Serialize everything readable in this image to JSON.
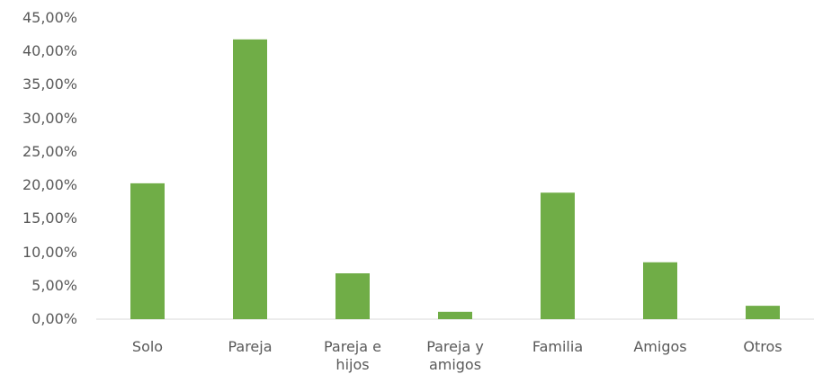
{
  "chart_data": {
    "type": "bar",
    "categories": [
      "Solo",
      "Pareja",
      "Pareja e hijos",
      "Pareja y amigos",
      "Familia",
      "Amigos",
      "Otros"
    ],
    "values": [
      20.3,
      41.8,
      6.85,
      1.1,
      18.9,
      8.5,
      2.0
    ],
    "color": "#70ad47",
    "ylim": [
      0,
      45
    ],
    "yticks": [
      {
        "value": 0,
        "label": "0,00%"
      },
      {
        "value": 5,
        "label": "5,00%"
      },
      {
        "value": 10,
        "label": "10,00%"
      },
      {
        "value": 15,
        "label": "15,00%"
      },
      {
        "value": 20,
        "label": "20,00%"
      },
      {
        "value": 25,
        "label": "25,00%"
      },
      {
        "value": 30,
        "label": "30,00%"
      },
      {
        "value": 35,
        "label": "35,00%"
      },
      {
        "value": 40,
        "label": "40,00%"
      },
      {
        "value": 45,
        "label": "45,00%"
      }
    ],
    "grid": false
  }
}
